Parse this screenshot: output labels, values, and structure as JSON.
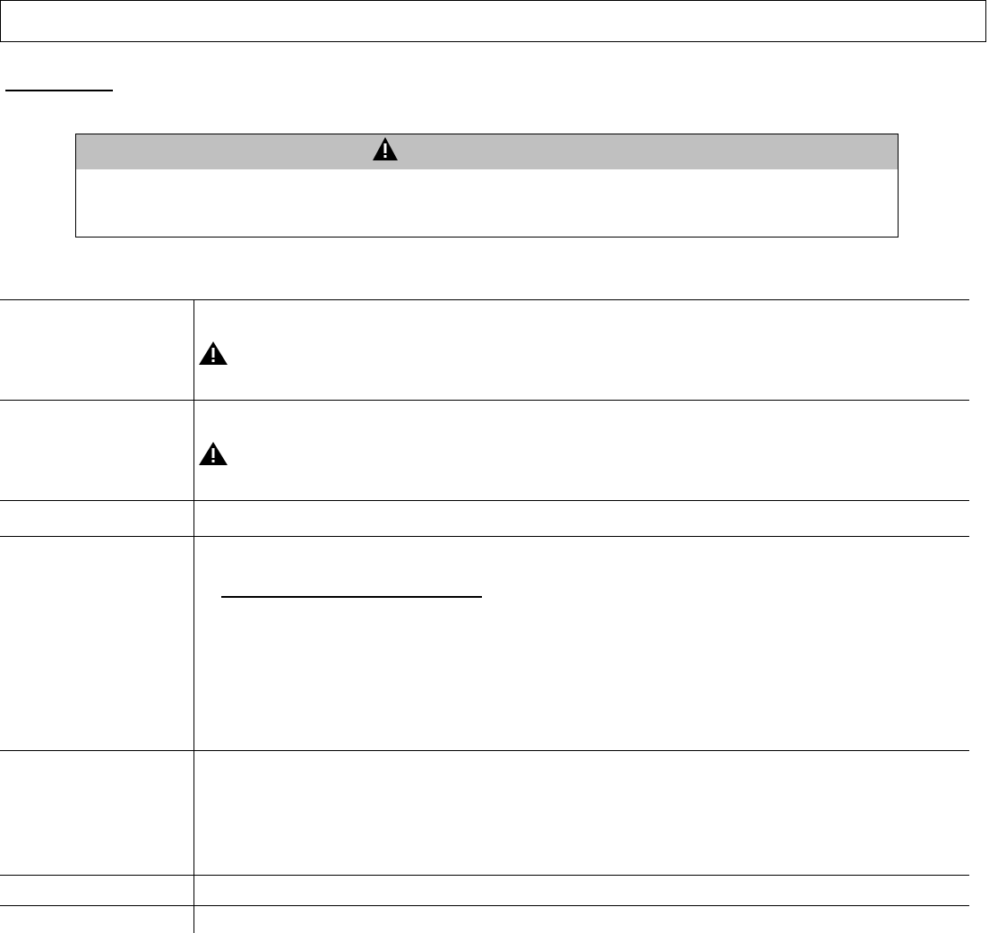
{
  "header_box": {},
  "caution_box": {
    "icon": "warning-triangle-icon",
    "header_color": "#c0c0c0"
  },
  "table": {
    "rows": [
      {
        "icon": "warning-triangle-icon"
      },
      {
        "icon": "warning-triangle-icon"
      },
      {},
      {},
      {},
      {},
      {}
    ]
  }
}
